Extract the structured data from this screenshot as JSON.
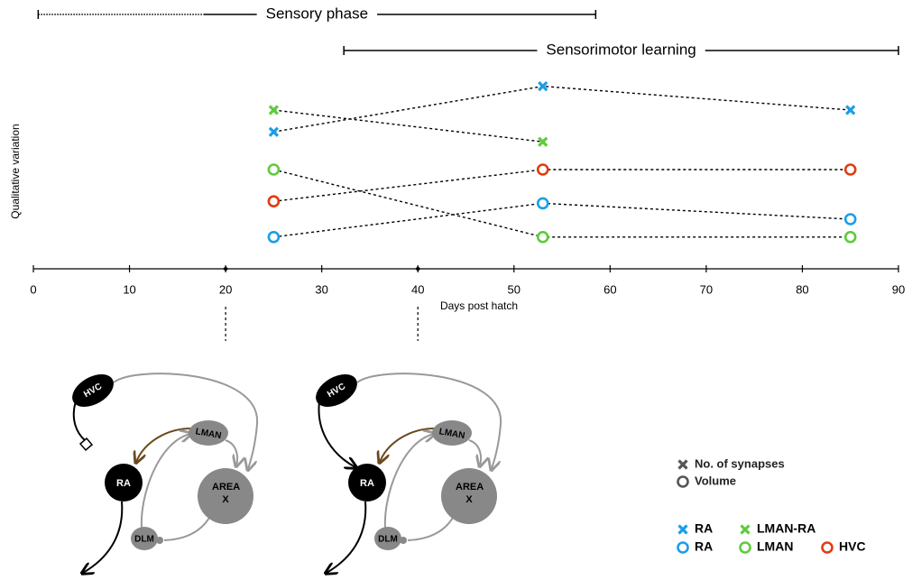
{
  "chart_data": {
    "type": "line",
    "ylabel": "Qualitative variation",
    "xlabel": "Days post hatch",
    "xlim": [
      0,
      90
    ],
    "xticks": [
      0,
      10,
      20,
      30,
      40,
      50,
      60,
      70,
      80,
      90
    ],
    "ylim": [
      0,
      10
    ],
    "phases": [
      {
        "label": "Sensory phase",
        "start": 0.5,
        "dotted_end": 17.7,
        "end": 58.5
      },
      {
        "label": "Sensorimotor learning",
        "start": 32.3,
        "end": 90
      }
    ],
    "stages": [
      20,
      40
    ],
    "series": [
      {
        "name": "RA",
        "marker": "x",
        "color": "#1a9ee8",
        "x": [
          25,
          53,
          85
        ],
        "values": [
          6.9,
          9.2,
          8.0
        ]
      },
      {
        "name": "LMAN-RA",
        "marker": "x",
        "color": "#5dcc3c",
        "x": [
          25,
          53
        ],
        "values": [
          8.0,
          6.4
        ]
      },
      {
        "name": "RA",
        "marker": "o",
        "color": "#1a9ee8",
        "x": [
          25,
          53,
          85
        ],
        "values": [
          1.6,
          3.3,
          2.5
        ]
      },
      {
        "name": "LMAN",
        "marker": "o",
        "color": "#5dcc3c",
        "x": [
          25,
          53,
          85
        ],
        "values": [
          5.0,
          1.6,
          1.6
        ]
      },
      {
        "name": "HVC",
        "marker": "o",
        "color": "#e03c10",
        "x": [
          25,
          53,
          85
        ],
        "values": [
          3.4,
          5.0,
          5.0
        ]
      }
    ],
    "marker_legend": [
      {
        "marker": "x",
        "label": "No. of synapses",
        "color": "#555555"
      },
      {
        "marker": "o",
        "label": "Volume",
        "color": "#555555"
      }
    ]
  },
  "diagrams": [
    {
      "hvc_ra_connected": false,
      "nodes": {
        "hvc": "HVC",
        "lman": "LMAN",
        "ra": "RA",
        "areax": "AREA X",
        "dlm": "DLM"
      }
    },
    {
      "hvc_ra_connected": true,
      "nodes": {
        "hvc": "HVC",
        "lman": "LMAN",
        "ra": "RA",
        "areax": "AREA X",
        "dlm": "DLM"
      }
    }
  ]
}
